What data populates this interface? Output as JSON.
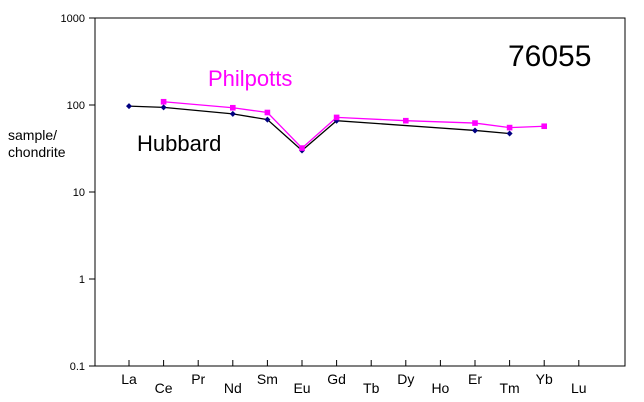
{
  "chart_data": {
    "type": "line",
    "yscale": "log",
    "ylim": [
      0.1,
      1000
    ],
    "yticks": [
      "0.1",
      "1",
      "10",
      "100",
      "1000"
    ],
    "ylabel_lines": [
      "sample/",
      "chondrite"
    ],
    "title": "76055",
    "categories": [
      "La",
      "Ce",
      "Pr",
      "Nd",
      "Sm",
      "Eu",
      "Gd",
      "Tb",
      "Dy",
      "Ho",
      "Er",
      "Tm",
      "Yb",
      "Lu"
    ],
    "series": [
      {
        "name": "Hubbard",
        "color": "#000000",
        "marker_color": "#000080",
        "values": [
          97,
          94,
          null,
          79,
          68,
          30,
          66,
          null,
          null,
          null,
          51,
          47,
          null,
          null
        ]
      },
      {
        "name": "Philpotts",
        "color": "#ff00ff",
        "marker_color": "#ff00ff",
        "values": [
          null,
          109,
          null,
          93,
          82,
          32,
          72,
          null,
          66,
          null,
          62,
          55,
          57,
          null
        ]
      }
    ]
  }
}
